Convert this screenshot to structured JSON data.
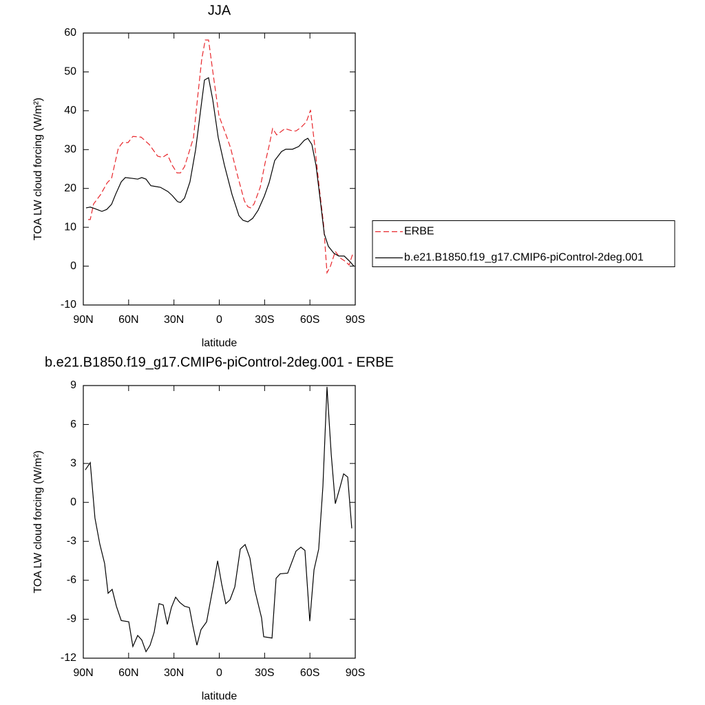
{
  "chart_data": [
    {
      "type": "line",
      "title": "JJA",
      "xlabel": "latitude",
      "ylabel": "TOA LW cloud forcing (W/m²)",
      "xlim": [
        90,
        -90
      ],
      "xticks": [
        {
          "value": 90,
          "label": "90N"
        },
        {
          "value": 60,
          "label": "60N"
        },
        {
          "value": 30,
          "label": "30N"
        },
        0,
        {
          "value": -30,
          "label": "30S"
        },
        {
          "value": -60,
          "label": "60S"
        },
        {
          "value": -90,
          "label": "90S"
        }
      ],
      "ylim": [
        -10,
        60
      ],
      "yticks": [
        -10,
        0,
        10,
        20,
        30,
        40,
        50,
        60
      ],
      "legend": "right",
      "series": [
        {
          "name": "ERBE",
          "color": "#e8262b",
          "line_style": "dashed",
          "x": [
            86.8,
            85.4,
            83.2,
            78.6,
            74.1,
            71.3,
            66.8,
            64.0,
            60.4,
            57.2,
            51.7,
            46.3,
            40.8,
            37.6,
            34.4,
            31.2,
            28.0,
            25.7,
            23.0,
            17.1,
            14.4,
            11.6,
            9.3,
            7.1,
            3.9,
            0.2,
            -5.2,
            -7.5,
            -12.1,
            -16.6,
            -18.9,
            -20.7,
            -23.0,
            -27.1,
            -30.3,
            -33.0,
            -35.3,
            -38.0,
            -43.5,
            -48.5,
            -50.8,
            -54.0,
            -57.6,
            -60.4,
            -63.1,
            -66.3,
            -69.0,
            -71.3,
            -73.6,
            -76.8,
            -80.0,
            -83.6,
            -85.9,
            -88.2
          ],
          "values": [
            12.0,
            12.0,
            16.0,
            18.4,
            21.5,
            22.6,
            30.4,
            31.8,
            31.8,
            33.4,
            33.2,
            31.3,
            28.3,
            28.0,
            28.8,
            26.0,
            24.0,
            24.0,
            25.6,
            33.0,
            43.2,
            53.3,
            58.2,
            58.2,
            49.0,
            38.7,
            33.0,
            30.4,
            23.3,
            16.8,
            15.3,
            15.0,
            16.0,
            20.3,
            26.5,
            31.0,
            35.4,
            33.8,
            35.4,
            34.8,
            34.8,
            35.7,
            37.1,
            40.2,
            31.3,
            19.8,
            10.9,
            -1.7,
            0.0,
            3.8,
            2.1,
            1.2,
            0.3,
            3.0
          ]
        },
        {
          "name": "b.e21.B1850.f19_g17.CMIP6-piControl-2deg.001",
          "color": "#000000",
          "line_style": "solid",
          "x": [
            88.2,
            85.4,
            82.3,
            77.7,
            74.5,
            71.3,
            68.6,
            64.9,
            62.2,
            57.6,
            54.0,
            51.3,
            48.5,
            45.3,
            42.2,
            39.0,
            34.0,
            31.2,
            27.6,
            25.7,
            23.0,
            19.4,
            15.7,
            12.6,
            9.8,
            7.1,
            4.3,
            0.7,
            -3.4,
            -8.4,
            -13.0,
            -15.7,
            -18.9,
            -22.1,
            -25.7,
            -29.8,
            -33.0,
            -36.7,
            -41.2,
            -44.0,
            -48.5,
            -52.6,
            -56.3,
            -58.6,
            -61.3,
            -64.0,
            -66.8,
            -69.5,
            -72.2,
            -75.9,
            -79.1,
            -82.7,
            -86.4,
            -89.1
          ],
          "values": [
            15.0,
            15.2,
            14.8,
            14.1,
            14.6,
            15.9,
            18.5,
            21.7,
            22.8,
            22.6,
            22.4,
            22.8,
            22.4,
            20.7,
            20.5,
            20.3,
            19.2,
            18.2,
            16.6,
            16.4,
            17.5,
            21.7,
            29.9,
            39.4,
            47.9,
            48.5,
            42.8,
            33.1,
            26.0,
            18.5,
            13.0,
            11.8,
            11.4,
            12.3,
            14.4,
            18.0,
            21.5,
            27.2,
            29.5,
            30.1,
            30.1,
            30.8,
            32.4,
            32.9,
            31.3,
            26.0,
            17.1,
            8.3,
            5.1,
            3.3,
            2.6,
            2.6,
            1.2,
            0.0
          ]
        }
      ]
    },
    {
      "type": "line",
      "title": "b.e21.B1850.f19_g17.CMIP6-piControl-2deg.001 - ERBE",
      "xlabel": "latitude",
      "ylabel": "TOA LW cloud forcing (W/m²)",
      "xlim": [
        90,
        -90
      ],
      "xticks": [
        {
          "value": 90,
          "label": "90N"
        },
        {
          "value": 60,
          "label": "60N"
        },
        {
          "value": 30,
          "label": "30N"
        },
        0,
        {
          "value": -30,
          "label": "30S"
        },
        {
          "value": -60,
          "label": "60S"
        },
        {
          "value": -90,
          "label": "90S"
        }
      ],
      "ylim": [
        -12,
        9
      ],
      "yticks": [
        -12,
        -9,
        -6,
        -3,
        0,
        3,
        6,
        9
      ],
      "series": [
        {
          "color": "#000000",
          "line_style": "solid",
          "x": [
            88.7,
            85.4,
            82.3,
            79.1,
            75.9,
            73.6,
            70.9,
            68.1,
            64.9,
            59.9,
            57.2,
            54.0,
            51.3,
            48.5,
            45.8,
            43.1,
            39.9,
            37.1,
            34.4,
            31.7,
            28.9,
            26.2,
            23.0,
            19.8,
            17.5,
            14.8,
            12.1,
            8.4,
            3.9,
            1.1,
            -1.6,
            -4.3,
            -7.1,
            -10.3,
            -13.9,
            -17.1,
            -20.3,
            -23.5,
            -28.0,
            -29.4,
            -34.9,
            -37.6,
            -40.3,
            -45.3,
            -50.8,
            -54.0,
            -56.7,
            -59.9,
            -62.7,
            -65.8,
            -68.6,
            -71.3,
            -74.1,
            -76.8,
            -80.0,
            -82.3,
            -85.0,
            -87.7
          ],
          "values": [
            2.5,
            3.06,
            -1.2,
            -3.2,
            -4.7,
            -7.0,
            -6.7,
            -8.0,
            -9.1,
            -9.2,
            -11.1,
            -10.25,
            -10.6,
            -11.5,
            -11.0,
            -10.0,
            -7.8,
            -7.9,
            -9.4,
            -8.1,
            -7.3,
            -7.7,
            -8.0,
            -8.1,
            -9.5,
            -11.0,
            -9.8,
            -9.2,
            -6.4,
            -4.5,
            -6.3,
            -7.8,
            -7.5,
            -6.5,
            -3.6,
            -3.25,
            -4.3,
            -6.75,
            -8.9,
            -10.35,
            -10.45,
            -5.85,
            -5.5,
            -5.45,
            -3.75,
            -3.45,
            -3.7,
            -9.15,
            -5.2,
            -3.6,
            1.25,
            8.9,
            3.7,
            -0.1,
            1.2,
            2.2,
            1.95,
            -2.0
          ]
        }
      ]
    }
  ]
}
